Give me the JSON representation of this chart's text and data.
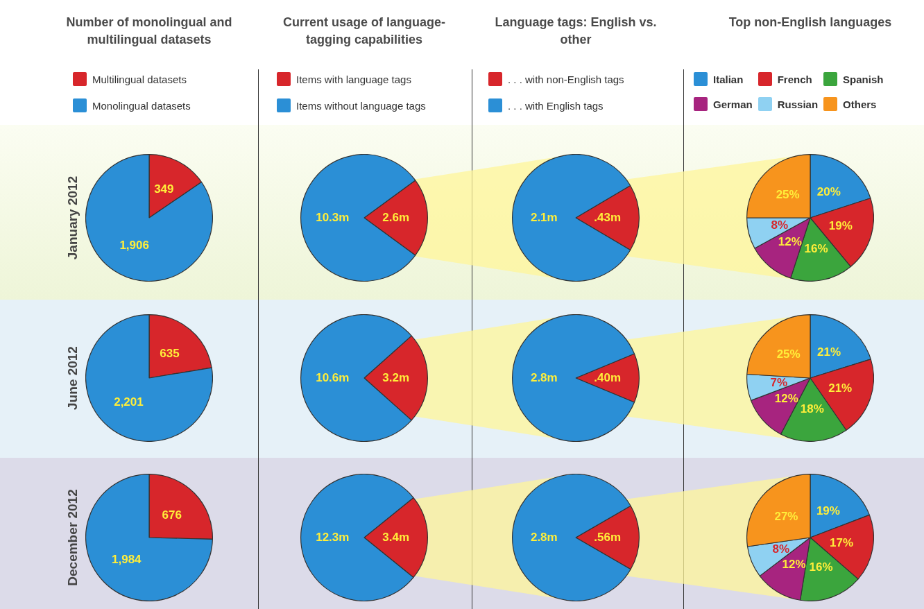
{
  "chart_data": [
    {
      "type": "pie",
      "title": "Number of monolingual and multilingual datasets",
      "ylabel": "January 2012",
      "legend": "top",
      "categories": [
        "Multilingual datasets",
        "Monolingual datasets"
      ],
      "values": [
        349,
        1906
      ],
      "colors": [
        "#d7262b",
        "#2b8fd6"
      ],
      "value_labels": [
        "349",
        "1,906"
      ]
    },
    {
      "type": "pie",
      "title": "Current usage of language-tagging capabilities",
      "legend": "top",
      "categories": [
        "Items with language tags",
        "Items without language tags"
      ],
      "values": [
        2.6,
        10.3
      ],
      "colors": [
        "#d7262b",
        "#2b8fd6"
      ],
      "value_labels": [
        "2.6m",
        "10.3m"
      ]
    },
    {
      "type": "pie",
      "title": "Language tags: English vs. other",
      "legend": "top",
      "categories": [
        ". . . with non-English tags",
        ". . . with English tags"
      ],
      "values": [
        0.43,
        2.1
      ],
      "colors": [
        "#d7262b",
        "#2b8fd6"
      ],
      "value_labels": [
        ".43m",
        "2.1m"
      ]
    },
    {
      "type": "pie",
      "title": "Top non-English languages",
      "legend": "top",
      "categories": [
        "Italian",
        "French",
        "Spanish",
        "German",
        "Russian",
        "Others"
      ],
      "values": [
        20,
        19,
        16,
        12,
        8,
        25
      ],
      "colors": [
        "#2b8fd6",
        "#d7262b",
        "#3ba53d",
        "#a7247f",
        "#8fd1f2",
        "#f7941d"
      ],
      "value_labels": [
        "20%",
        "19%",
        "16%",
        "12%",
        "8%",
        "25%"
      ]
    },
    {
      "type": "pie",
      "ylabel": "June 2012",
      "categories": [
        null,
        null
      ],
      "values": [
        635,
        2201
      ],
      "colors": [
        "#d7262b",
        "#2b8fd6"
      ],
      "value_labels": [
        "635",
        "2,201"
      ]
    },
    {
      "type": "pie",
      "categories": [
        null,
        null
      ],
      "values": [
        3.2,
        10.6
      ],
      "colors": [
        "#d7262b",
        "#2b8fd6"
      ],
      "value_labels": [
        "3.2m",
        "10.6m"
      ]
    },
    {
      "type": "pie",
      "categories": [
        null,
        null
      ],
      "values": [
        0.4,
        2.8
      ],
      "colors": [
        "#d7262b",
        "#2b8fd6"
      ],
      "value_labels": [
        ".40m",
        "2.8m"
      ]
    },
    {
      "type": "pie",
      "categories": [
        null,
        null,
        null,
        null,
        null,
        null
      ],
      "values": [
        21,
        21,
        18,
        12,
        7,
        25
      ],
      "colors": [
        "#2b8fd6",
        "#d7262b",
        "#3ba53d",
        "#a7247f",
        "#8fd1f2",
        "#f7941d"
      ],
      "value_labels": [
        "21%",
        "21%",
        "18%",
        "12%",
        "7%",
        "25%"
      ]
    },
    {
      "type": "pie",
      "ylabel": "December 2012",
      "categories": [
        null,
        null
      ],
      "values": [
        676,
        1984
      ],
      "colors": [
        "#d7262b",
        "#2b8fd6"
      ],
      "value_labels": [
        "676",
        "1,984"
      ]
    },
    {
      "type": "pie",
      "categories": [
        null,
        null
      ],
      "values": [
        3.4,
        12.3
      ],
      "colors": [
        "#d7262b",
        "#2b8fd6"
      ],
      "value_labels": [
        "3.4m",
        "12.3m"
      ]
    },
    {
      "type": "pie",
      "categories": [
        null,
        null
      ],
      "values": [
        0.56,
        2.8
      ],
      "colors": [
        "#d7262b",
        "#2b8fd6"
      ],
      "value_labels": [
        ".56m",
        "2.8m"
      ]
    },
    {
      "type": "pie",
      "categories": [
        null,
        null,
        null,
        null,
        null,
        null
      ],
      "values": [
        19,
        17,
        16,
        12,
        8,
        27
      ],
      "colors": [
        "#2b8fd6",
        "#d7262b",
        "#3ba53d",
        "#a7247f",
        "#8fd1f2",
        "#f7941d"
      ],
      "value_labels": [
        "19%",
        "17%",
        "16%",
        "12%",
        "8%",
        "27%"
      ]
    }
  ]
}
